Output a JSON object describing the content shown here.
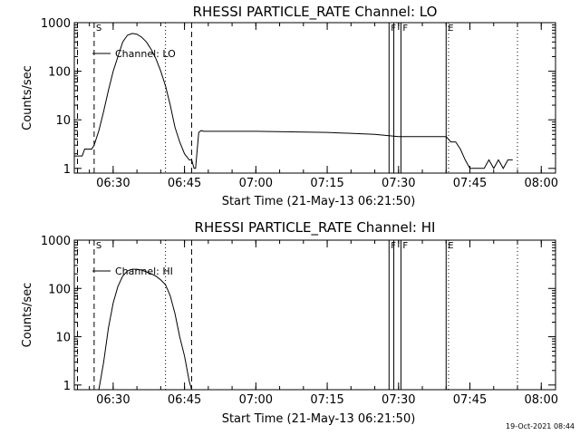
{
  "chart_data": [
    {
      "type": "line",
      "title": "RHESSI PARTICLE_RATE Channel: LO",
      "xlabel": "Start Time (21-May-13 06:21:50)",
      "ylabel": "Counts/sec",
      "yscale": "log",
      "xlim": [
        "06:21:50",
        "08:03:00"
      ],
      "ylim": [
        0.8,
        1000
      ],
      "xticks": [
        "06:30",
        "06:45",
        "07:00",
        "07:15",
        "07:30",
        "07:45",
        "08:00"
      ],
      "yticks": [
        "1",
        "10",
        "100",
        "1000"
      ],
      "legend": "Channel: LO",
      "legend_position": "top-left",
      "markers": [
        {
          "time": "06:22:30",
          "label": "",
          "style": "dashed"
        },
        {
          "time": "06:26:00",
          "label": "S",
          "style": "dashed"
        },
        {
          "time": "06:41:00",
          "label": "",
          "style": "dotted"
        },
        {
          "time": "06:46:30",
          "label": "",
          "style": "dashed"
        },
        {
          "time": "07:28:00",
          "label": "F",
          "style": "solid"
        },
        {
          "time": "07:29:00",
          "label": "",
          "style": "solid"
        },
        {
          "time": "07:30:30",
          "label": "F",
          "style": "solid"
        },
        {
          "time": "07:40:00",
          "label": "E",
          "style": "solid"
        },
        {
          "time": "07:40:30",
          "label": "",
          "style": "dotted"
        },
        {
          "time": "07:55:00",
          "label": "",
          "style": "dotted"
        }
      ],
      "series": [
        {
          "x": [
            "06:21:50",
            "06:23:30",
            "06:24:00",
            "06:25:30",
            "06:26:00",
            "06:27:00",
            "06:28:00",
            "06:29:00",
            "06:30:00",
            "06:31:00",
            "06:32:00",
            "06:33:00",
            "06:34:00",
            "06:35:00",
            "06:36:00",
            "06:37:00",
            "06:38:00",
            "06:39:00",
            "06:40:00",
            "06:41:00",
            "06:42:00",
            "06:43:00",
            "06:44:00",
            "06:45:00",
            "06:46:00",
            "06:46:30",
            "06:47:00",
            "06:47:20",
            "06:48:00",
            "06:48:30",
            "06:49:00",
            "07:00:00",
            "07:15:00",
            "07:25:00",
            "07:30:00",
            "07:35:00",
            "07:40:00",
            "07:41:00",
            "07:42:00",
            "07:43:00",
            "07:44:00",
            "07:45:00",
            "07:46:00",
            "07:47:00",
            "07:48:00",
            "07:49:00",
            "07:50:00",
            "07:51:00",
            "07:52:00",
            "07:53:00",
            "07:54:00"
          ],
          "values": [
            1.8,
            1.8,
            2.5,
            2.5,
            3.0,
            6.0,
            15,
            40,
            100,
            200,
            400,
            550,
            600,
            580,
            500,
            400,
            280,
            180,
            100,
            50,
            20,
            7,
            3.5,
            2.0,
            1.5,
            1.5,
            1.0,
            1.0,
            5.5,
            6.0,
            5.8,
            5.8,
            5.5,
            5.0,
            4.5,
            4.5,
            4.5,
            3.5,
            3.5,
            2.5,
            1.5,
            1.0,
            1.0,
            1.0,
            1.0,
            1.5,
            1.0,
            1.5,
            1.0,
            1.5,
            1.5
          ]
        }
      ]
    },
    {
      "type": "line",
      "title": "RHESSI PARTICLE_RATE Channel: HI",
      "xlabel": "Start Time (21-May-13 06:21:50)",
      "ylabel": "Counts/sec",
      "yscale": "log",
      "xlim": [
        "06:21:50",
        "08:03:00"
      ],
      "ylim": [
        0.8,
        1000
      ],
      "xticks": [
        "06:30",
        "06:45",
        "07:00",
        "07:15",
        "07:30",
        "07:45",
        "08:00"
      ],
      "yticks": [
        "1",
        "10",
        "100",
        "1000"
      ],
      "legend": "Channel: HI",
      "legend_position": "top-left",
      "markers": [
        {
          "time": "06:22:30",
          "label": "",
          "style": "dashed"
        },
        {
          "time": "06:26:00",
          "label": "S",
          "style": "dashed"
        },
        {
          "time": "06:41:00",
          "label": "",
          "style": "dotted"
        },
        {
          "time": "06:46:30",
          "label": "",
          "style": "dashed"
        },
        {
          "time": "07:28:00",
          "label": "F",
          "style": "solid"
        },
        {
          "time": "07:29:00",
          "label": "",
          "style": "solid"
        },
        {
          "time": "07:30:30",
          "label": "F",
          "style": "solid"
        },
        {
          "time": "07:40:00",
          "label": "E",
          "style": "solid"
        },
        {
          "time": "07:40:30",
          "label": "",
          "style": "dotted"
        },
        {
          "time": "07:55:00",
          "label": "",
          "style": "dotted"
        }
      ],
      "series": [
        {
          "x": [
            "06:27:00",
            "06:28:00",
            "06:29:00",
            "06:30:00",
            "06:31:00",
            "06:32:00",
            "06:33:00",
            "06:34:00",
            "06:35:00",
            "06:36:00",
            "06:37:00",
            "06:38:00",
            "06:39:00",
            "06:40:00",
            "06:41:00",
            "06:42:00",
            "06:43:00",
            "06:44:00",
            "06:45:00",
            "06:46:00",
            "06:46:30"
          ],
          "values": [
            0.8,
            3,
            15,
            50,
            110,
            180,
            230,
            250,
            250,
            240,
            220,
            200,
            180,
            150,
            120,
            70,
            30,
            10,
            4,
            1.2,
            0.8
          ]
        }
      ]
    }
  ],
  "timestamp": "19-Oct-2021 08:44"
}
